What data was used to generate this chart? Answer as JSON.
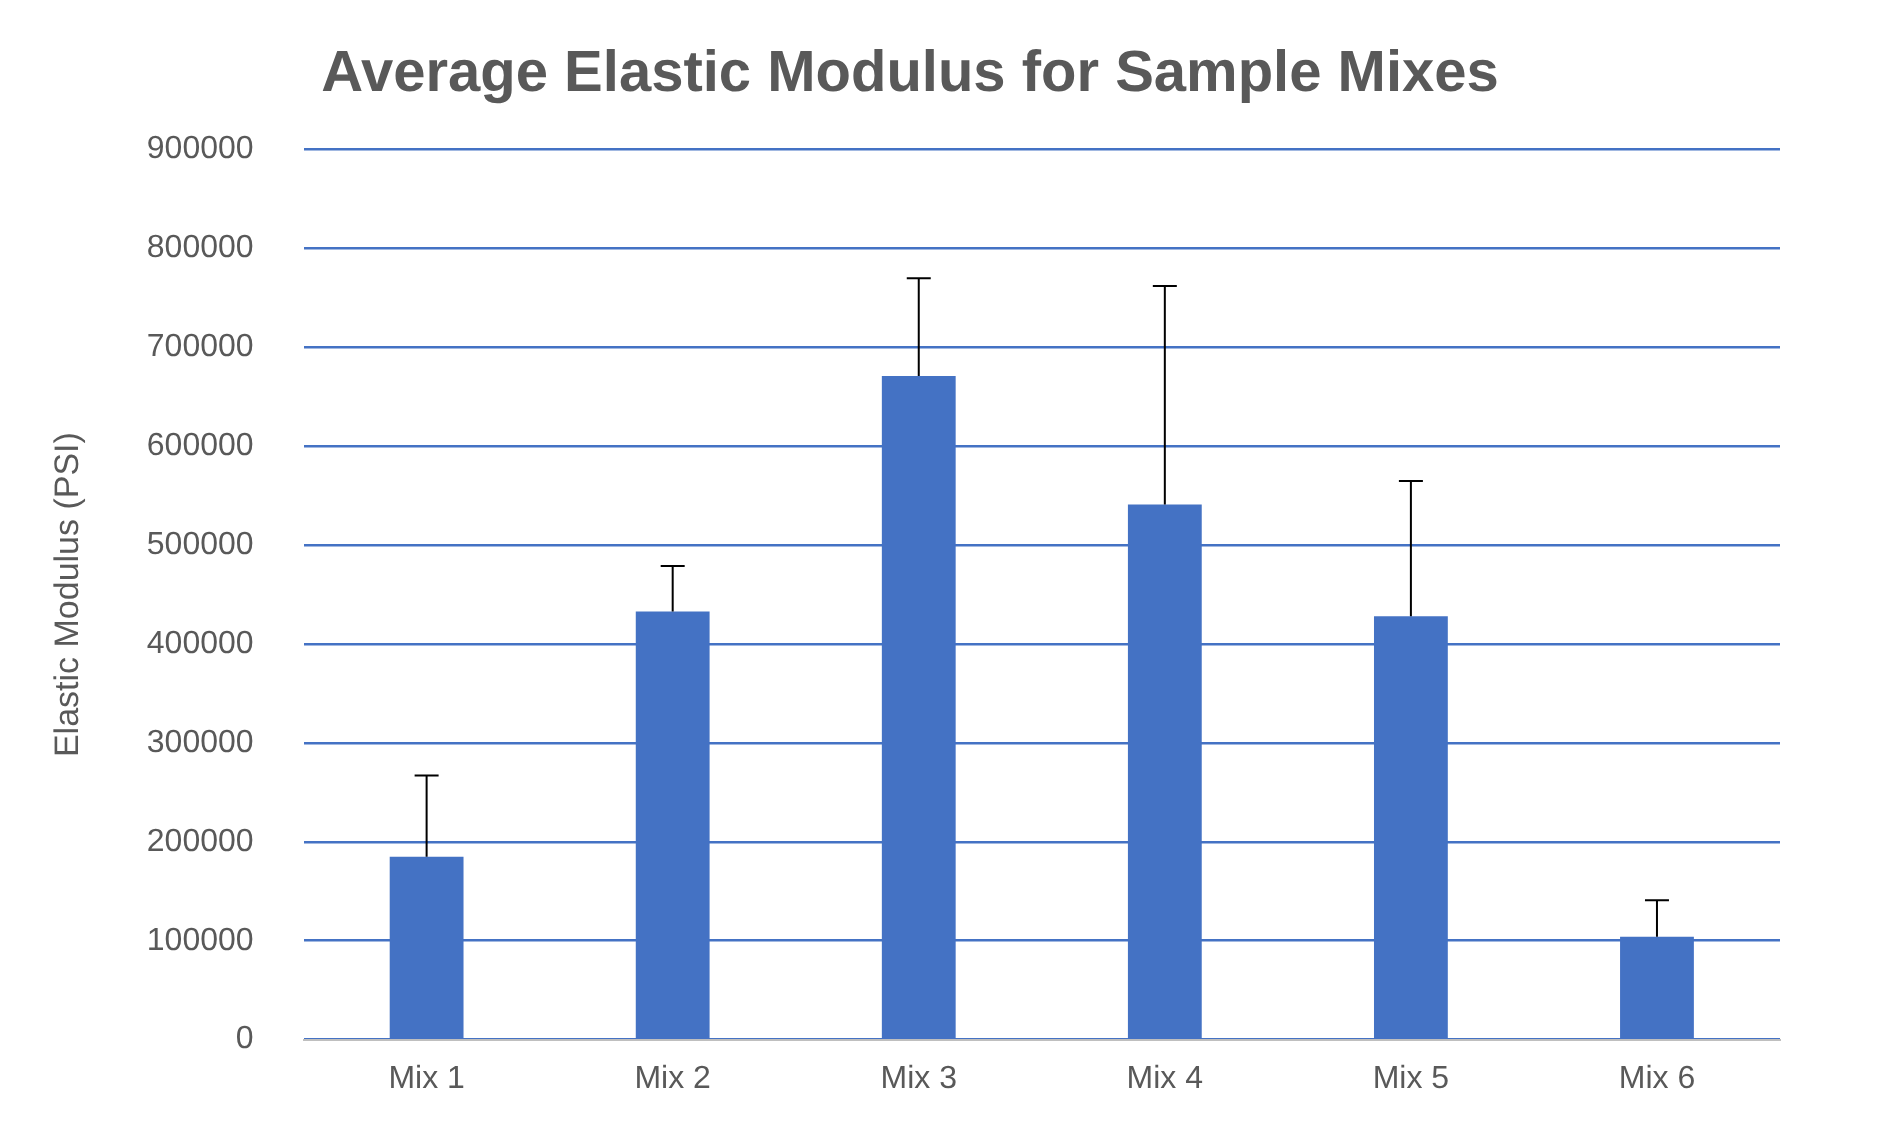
{
  "chart_data": {
    "type": "bar",
    "title": "Average Elastic Modulus for Sample Mixes",
    "ylabel": "Elastic Modulus (PSI)",
    "categories": [
      "Mix 1",
      "Mix 2",
      "Mix 3",
      "Mix 4",
      "Mix 5",
      "Mix 6"
    ],
    "values": [
      185000,
      433000,
      671000,
      541000,
      428000,
      104000
    ],
    "errors": [
      [
        185000,
        267000
      ],
      [
        433000,
        479000
      ],
      [
        671000,
        770000
      ],
      [
        541000,
        762000
      ],
      [
        428000,
        565000
      ],
      [
        104000,
        141000
      ]
    ],
    "color": "#4472c4",
    "ylim": [
      0,
      900000
    ],
    "yticks": [
      0,
      100000,
      200000,
      300000,
      400000,
      500000,
      600000,
      700000,
      800000,
      900000
    ],
    "grid": "y",
    "legend": false
  }
}
